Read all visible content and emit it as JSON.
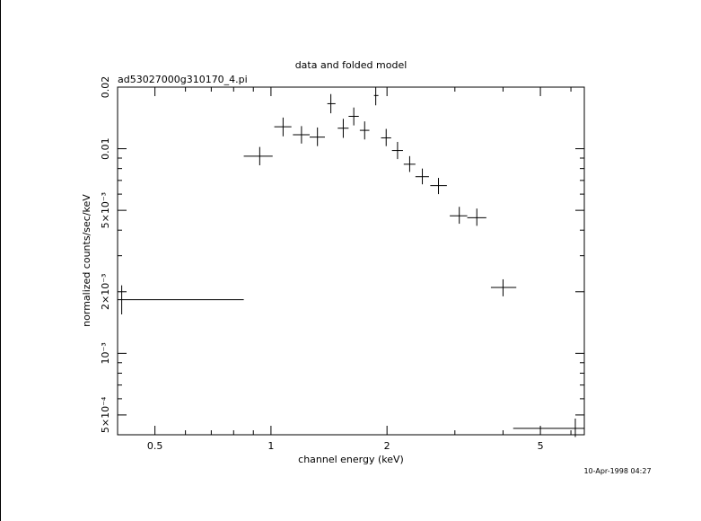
{
  "chart_data": {
    "type": "scatter",
    "title": "data and folded model",
    "subtitle": "ad53027000g310170_4.pi",
    "xlabel": "channel energy (keV)",
    "ylabel": "normalized counts/sec/keV",
    "timestamp": "10-Apr-1998 04:27",
    "x_scale": "log",
    "y_scale": "log",
    "xlim": [
      0.4,
      6.5
    ],
    "ylim": [
      0.0004,
      0.02
    ],
    "grid": false,
    "x_ticks_major": [
      {
        "value": 0.5,
        "label": "0.5"
      },
      {
        "value": 1,
        "label": "1"
      },
      {
        "value": 2,
        "label": "2"
      },
      {
        "value": 5,
        "label": "5"
      }
    ],
    "x_ticks_minor": [
      0.6,
      0.7,
      0.8,
      0.9,
      3,
      4,
      6
    ],
    "y_ticks_major": [
      {
        "value": 0.0005,
        "label": "5×10⁻⁴"
      },
      {
        "value": 0.001,
        "label": "10⁻³"
      },
      {
        "value": 0.002,
        "label": "2×10⁻³"
      },
      {
        "value": 0.005,
        "label": "5×10⁻³"
      },
      {
        "value": 0.01,
        "label": "0.01"
      },
      {
        "value": 0.02,
        "label": "0.02"
      }
    ],
    "y_ticks_minor": [
      0.0006,
      0.0007,
      0.0008,
      0.0009,
      0.003,
      0.004,
      0.006,
      0.007,
      0.008,
      0.009
    ],
    "series": [
      {
        "points": [
          {
            "x": 0.41,
            "xlo": 0.4,
            "xhi": 0.85,
            "y": 0.00183,
            "ylo": 0.00155,
            "yhi": 0.00215
          },
          {
            "x": 0.935,
            "xlo": 0.85,
            "xhi": 1.01,
            "y": 0.0092,
            "ylo": 0.0083,
            "yhi": 0.0102
          },
          {
            "x": 1.075,
            "xlo": 1.02,
            "xhi": 1.13,
            "y": 0.0128,
            "ylo": 0.0115,
            "yhi": 0.0142
          },
          {
            "x": 1.2,
            "xlo": 1.14,
            "xhi": 1.26,
            "y": 0.0117,
            "ylo": 0.0106,
            "yhi": 0.0129
          },
          {
            "x": 1.32,
            "xlo": 1.26,
            "xhi": 1.38,
            "y": 0.0114,
            "ylo": 0.0103,
            "yhi": 0.0127
          },
          {
            "x": 1.43,
            "xlo": 1.4,
            "xhi": 1.47,
            "y": 0.0166,
            "ylo": 0.0149,
            "yhi": 0.0185
          },
          {
            "x": 1.54,
            "xlo": 1.49,
            "xhi": 1.59,
            "y": 0.0126,
            "ylo": 0.0113,
            "yhi": 0.014
          },
          {
            "x": 1.64,
            "xlo": 1.59,
            "xhi": 1.69,
            "y": 0.0144,
            "ylo": 0.013,
            "yhi": 0.0159
          },
          {
            "x": 1.75,
            "xlo": 1.7,
            "xhi": 1.8,
            "y": 0.0123,
            "ylo": 0.0111,
            "yhi": 0.0136
          },
          {
            "x": 1.87,
            "xlo": 1.85,
            "xhi": 1.9,
            "y": 0.0182,
            "ylo": 0.0163,
            "yhi": 0.02
          },
          {
            "x": 1.99,
            "xlo": 1.93,
            "xhi": 2.05,
            "y": 0.0113,
            "ylo": 0.0103,
            "yhi": 0.0125
          },
          {
            "x": 2.13,
            "xlo": 2.06,
            "xhi": 2.2,
            "y": 0.0098,
            "ylo": 0.0089,
            "yhi": 0.0108
          },
          {
            "x": 2.29,
            "xlo": 2.21,
            "xhi": 2.37,
            "y": 0.0084,
            "ylo": 0.0077,
            "yhi": 0.0092
          },
          {
            "x": 2.47,
            "xlo": 2.37,
            "xhi": 2.57,
            "y": 0.0073,
            "ylo": 0.0067,
            "yhi": 0.008
          },
          {
            "x": 2.72,
            "xlo": 2.59,
            "xhi": 2.86,
            "y": 0.0066,
            "ylo": 0.006,
            "yhi": 0.0072
          },
          {
            "x": 3.08,
            "xlo": 2.91,
            "xhi": 3.23,
            "y": 0.0047,
            "ylo": 0.0043,
            "yhi": 0.0052
          },
          {
            "x": 3.42,
            "xlo": 3.23,
            "xhi": 3.62,
            "y": 0.0046,
            "ylo": 0.0042,
            "yhi": 0.0051
          },
          {
            "x": 4.0,
            "xlo": 3.72,
            "xhi": 4.33,
            "y": 0.0021,
            "ylo": 0.0019,
            "yhi": 0.0023
          },
          {
            "x": 6.16,
            "xlo": 4.25,
            "xhi": 6.5,
            "y": 0.00043,
            "ylo": 0.00039,
            "yhi": 0.00048
          }
        ]
      }
    ]
  }
}
